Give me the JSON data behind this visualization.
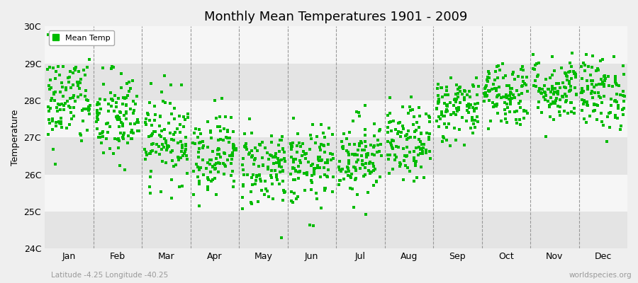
{
  "title": "Monthly Mean Temperatures 1901 - 2009",
  "ylabel": "Temperature",
  "xlabel_bottom_left": "Latitude -4.25 Longitude -40.25",
  "xlabel_bottom_right": "worldspecies.org",
  "yticks": [
    24,
    25,
    26,
    27,
    28,
    29,
    30
  ],
  "ytick_labels": [
    "24C",
    "25C",
    "26C",
    "27C",
    "28C",
    "29C",
    "30C"
  ],
  "months": [
    "Jan",
    "Feb",
    "Mar",
    "Apr",
    "May",
    "Jun",
    "Jul",
    "Aug",
    "Sep",
    "Oct",
    "Nov",
    "Dec"
  ],
  "marker_color": "#00bb00",
  "marker": "s",
  "marker_size": 2.5,
  "bg_color": "#efefef",
  "band_colors": [
    "#e4e4e4",
    "#f6f6f6"
  ],
  "dashed_line_color": "#999999",
  "legend_label": "Mean Temp",
  "ylim": [
    24,
    30
  ],
  "seed": 42,
  "n_years": 109,
  "monthly_mean": [
    28.0,
    27.5,
    27.0,
    26.6,
    26.2,
    26.2,
    26.5,
    26.8,
    27.8,
    28.2,
    28.3,
    28.2
  ],
  "monthly_std": [
    0.65,
    0.65,
    0.6,
    0.55,
    0.55,
    0.55,
    0.55,
    0.5,
    0.45,
    0.45,
    0.45,
    0.5
  ]
}
